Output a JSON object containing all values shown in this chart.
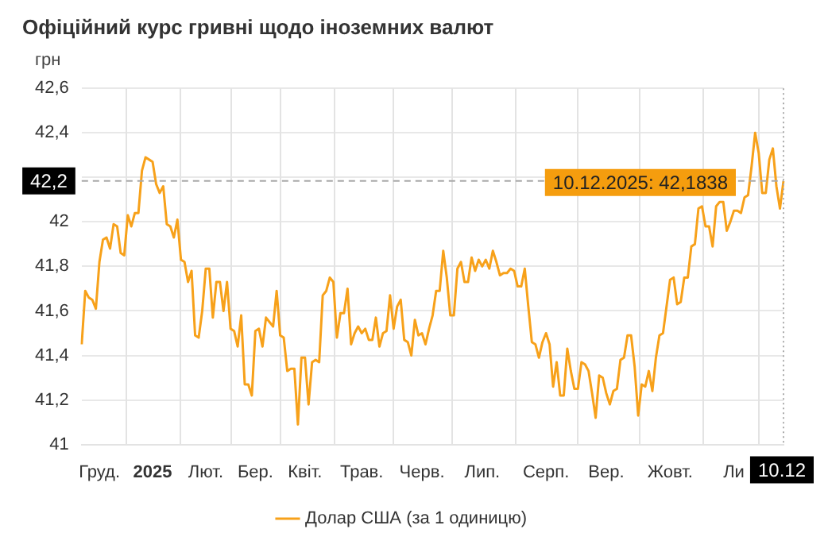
{
  "chart_data": {
    "type": "line",
    "title": "Офіційний курс гривні щодо іноземних валют",
    "ylabel": "грн",
    "categories": [
      null,
      null,
      null,
      null,
      null,
      "Груд.",
      null,
      null,
      null,
      null,
      null,
      null,
      null,
      null,
      null,
      null,
      null,
      null,
      null,
      null,
      "2025",
      null,
      null,
      null,
      null,
      null,
      null,
      null,
      null,
      null,
      null,
      null,
      null,
      null,
      null,
      "Лют.",
      null,
      null,
      null,
      null,
      null,
      null,
      null,
      null,
      null,
      null,
      null,
      null,
      null,
      "Бер.",
      null,
      null,
      null,
      null,
      null,
      null,
      null,
      null,
      null,
      null,
      null,
      null,
      null,
      "Квіт.",
      null,
      null,
      null,
      null,
      null,
      null,
      null,
      null,
      null,
      null,
      null,
      null,
      null,
      null,
      null,
      "Трав.",
      null,
      null,
      null,
      null,
      null,
      null,
      null,
      null,
      null,
      null,
      null,
      null,
      null,
      null,
      null,
      null,
      "Черв.",
      null,
      null,
      null,
      null,
      null,
      null,
      null,
      null,
      null,
      null,
      null,
      null,
      null,
      null,
      null,
      null,
      "Лип.",
      null,
      null,
      null,
      null,
      null,
      null,
      null,
      null,
      null,
      null,
      null,
      null,
      null,
      null,
      null,
      null,
      null,
      "Серп.",
      null,
      null,
      null,
      null,
      null,
      null,
      null,
      null,
      null,
      null,
      null,
      null,
      null,
      null,
      null,
      null,
      "Вер.",
      null,
      null,
      null,
      null,
      null,
      null,
      null,
      null,
      null,
      null,
      null,
      null,
      null,
      null,
      null,
      null,
      null,
      "Жовт.",
      null,
      null,
      null,
      null,
      null,
      null,
      null,
      null,
      null,
      null,
      null,
      null,
      null,
      null,
      null,
      null,
      null,
      "Ли",
      null,
      null,
      null,
      null,
      null,
      null,
      null,
      null,
      null,
      null,
      null,
      null,
      null,
      "10.12"
    ],
    "series": [
      {
        "name": "Долар США (за 1 одиницю)",
        "color": "#f7a11a",
        "values": [
          41.45,
          41.69,
          41.66,
          41.65,
          41.61,
          41.82,
          41.92,
          41.93,
          41.88,
          41.99,
          41.98,
          41.86,
          41.85,
          42.03,
          41.98,
          42.04,
          42.04,
          42.23,
          42.29,
          42.28,
          42.27,
          42.17,
          42.13,
          42.16,
          41.99,
          41.98,
          41.93,
          42.01,
          41.83,
          41.82,
          41.73,
          41.78,
          41.49,
          41.48,
          41.6,
          41.79,
          41.79,
          41.57,
          41.73,
          41.73,
          41.6,
          41.73,
          41.52,
          41.51,
          41.44,
          41.58,
          41.27,
          41.27,
          41.22,
          41.51,
          41.52,
          41.44,
          41.57,
          41.55,
          41.53,
          41.69,
          41.49,
          41.48,
          41.33,
          41.34,
          41.34,
          41.09,
          41.39,
          41.39,
          41.18,
          41.37,
          41.38,
          41.37,
          41.67,
          41.69,
          41.75,
          41.73,
          41.48,
          41.59,
          41.59,
          41.7,
          41.45,
          41.5,
          41.53,
          41.5,
          41.52,
          41.47,
          41.47,
          41.57,
          41.44,
          41.5,
          41.51,
          41.67,
          41.52,
          41.62,
          41.65,
          41.47,
          41.46,
          41.4,
          41.56,
          41.49,
          41.5,
          41.45,
          41.52,
          41.58,
          41.69,
          41.69,
          41.87,
          41.75,
          41.58,
          41.58,
          41.79,
          41.82,
          41.73,
          41.73,
          41.84,
          41.78,
          41.83,
          41.8,
          41.83,
          41.79,
          41.87,
          41.82,
          41.76,
          41.77,
          41.77,
          41.79,
          41.78,
          41.71,
          41.71,
          41.79,
          41.62,
          41.46,
          41.45,
          41.39,
          41.46,
          41.5,
          41.45,
          41.26,
          41.37,
          41.22,
          41.22,
          41.43,
          41.33,
          41.25,
          41.25,
          41.37,
          41.36,
          41.33,
          41.23,
          41.12,
          41.31,
          41.3,
          41.23,
          41.18,
          41.24,
          41.25,
          41.38,
          41.39,
          41.49,
          41.49,
          41.35,
          41.13,
          41.27,
          41.26,
          41.33,
          41.24,
          41.39,
          41.49,
          41.5,
          41.62,
          41.74,
          41.75,
          41.63,
          41.64,
          41.75,
          41.75,
          41.89,
          41.9,
          42.06,
          42.07,
          41.98,
          41.98,
          41.89,
          42.07,
          42.09,
          42.09,
          41.96,
          42.0,
          42.05,
          42.05,
          42.04,
          42.11,
          42.12,
          42.25,
          42.4,
          42.31,
          42.13,
          42.13,
          42.28,
          42.33,
          42.16,
          42.06,
          42.1838
        ]
      }
    ],
    "ylim": [
      41,
      42.6
    ],
    "yticks": [
      41,
      {
        "value": 41.2,
        "label": "41,2"
      },
      {
        "value": 41.4,
        "label": "41,4"
      },
      {
        "value": 41.6,
        "label": "41,6"
      },
      {
        "value": 41.8,
        "label": "41,8"
      },
      42,
      {
        "value": 42.2,
        "label": null
      },
      {
        "value": 42.4,
        "label": "42,4"
      },
      {
        "value": 42.6,
        "label": "42,6"
      }
    ],
    "ref_lines": [
      {
        "axis": "y",
        "value": 42.1838,
        "label": "42,2",
        "color": "#aaaaaa",
        "line_style": "dashed"
      },
      {
        "axis": "x",
        "value": "10.12",
        "color": "#aaaaaa",
        "line_style": "dotted"
      }
    ],
    "annotations": [
      {
        "text": "10.12.2025: 42,1838",
        "x": "10.12",
        "y": 42.1838
      }
    ],
    "grid": true,
    "legend": "bottom",
    "marker": "none",
    "line_style": "solid"
  }
}
